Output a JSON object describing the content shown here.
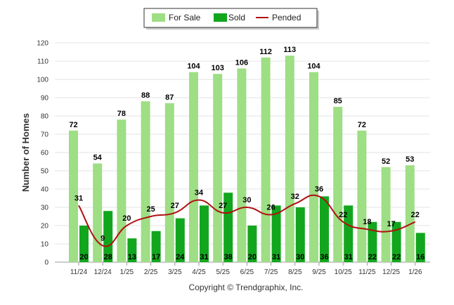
{
  "chart_data": {
    "type": "bar",
    "title": "",
    "xlabel": "",
    "ylabel": "Number of Homes",
    "ylim": [
      0,
      120
    ],
    "yticks": [
      0,
      10,
      20,
      30,
      40,
      50,
      60,
      70,
      80,
      90,
      100,
      110,
      120
    ],
    "grid": true,
    "legend_position": "top-center",
    "categories": [
      "11/24",
      "12/24",
      "1/25",
      "2/25",
      "3/25",
      "4/25",
      "5/25",
      "6/25",
      "7/25",
      "8/25",
      "9/25",
      "10/25",
      "11/25",
      "12/25",
      "1/26"
    ],
    "series": [
      {
        "name": "For Sale",
        "kind": "bar",
        "color": "#9ede84",
        "values": [
          72,
          54,
          78,
          88,
          87,
          104,
          103,
          106,
          112,
          113,
          104,
          85,
          72,
          52,
          53
        ]
      },
      {
        "name": "Sold",
        "kind": "bar",
        "color": "#12a61e",
        "values": [
          20,
          28,
          13,
          17,
          24,
          31,
          38,
          20,
          31,
          30,
          36,
          31,
          22,
          22,
          16
        ]
      },
      {
        "name": "Pended",
        "kind": "line",
        "color": "#b01010",
        "values": [
          31,
          9,
          20,
          25,
          27,
          34,
          27,
          30,
          26,
          32,
          36,
          22,
          18,
          17,
          22
        ]
      }
    ],
    "credit": "Copyright © Trendgraphix, Inc."
  }
}
